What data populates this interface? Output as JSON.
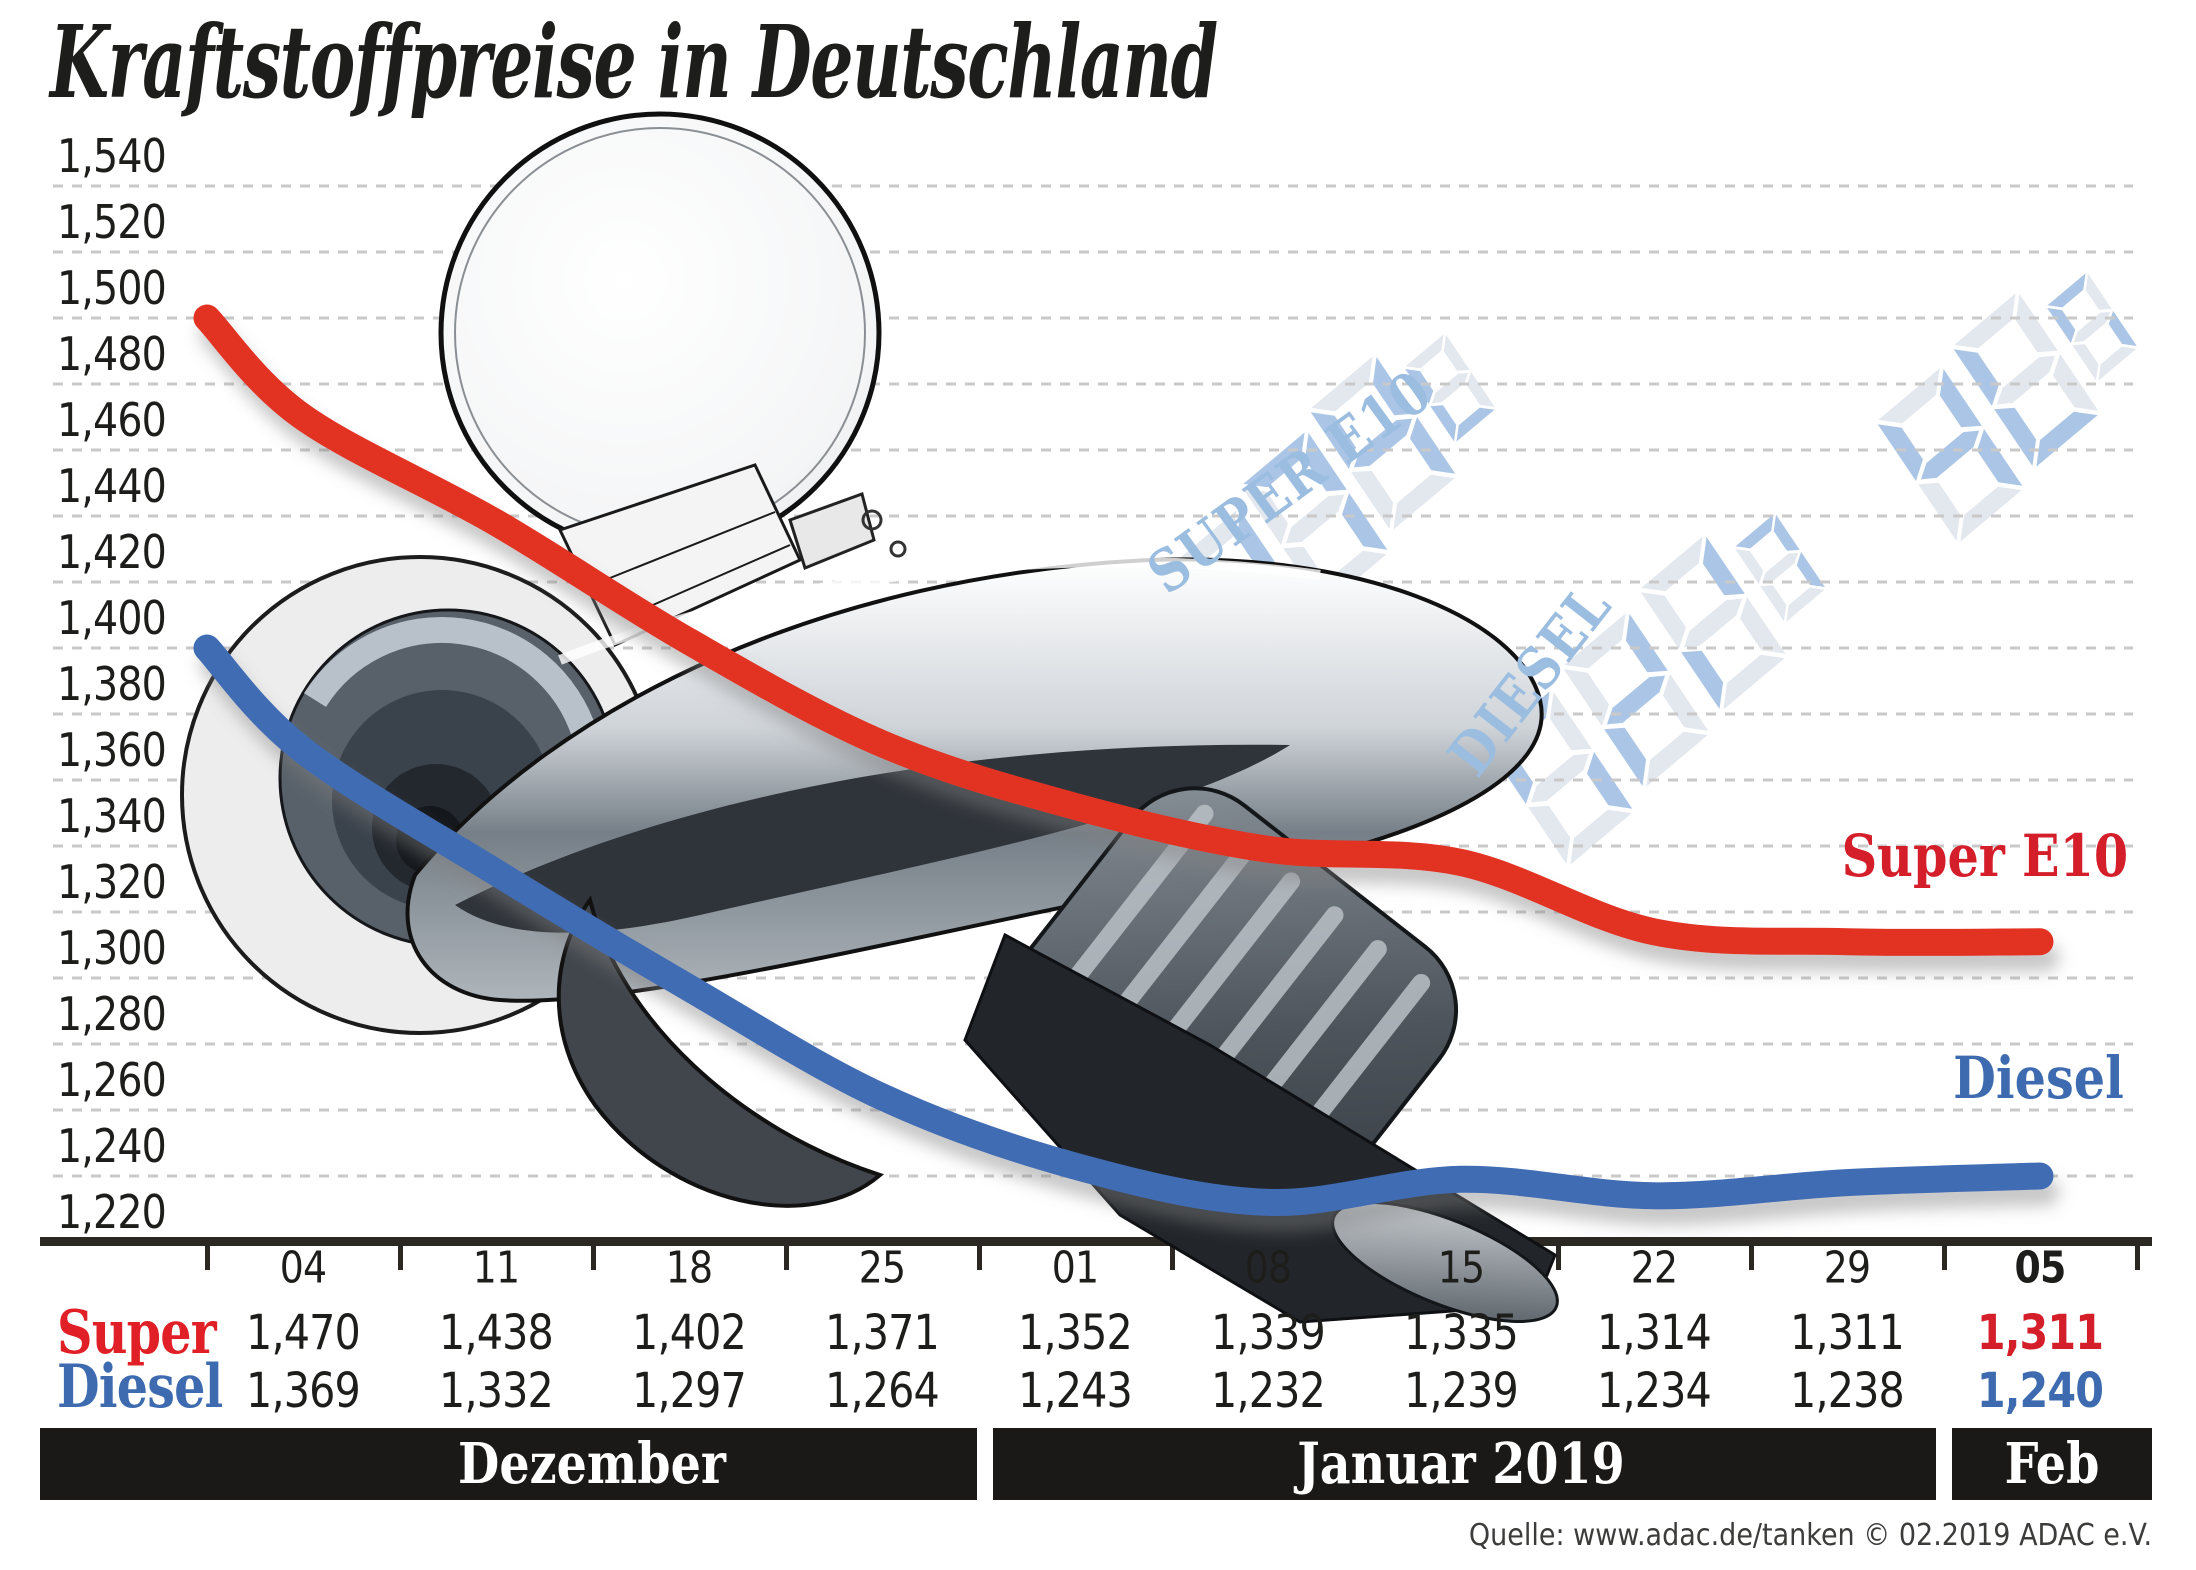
{
  "title": "Kraftstoffpreise in Deutschland",
  "source_note": "Quelle: www.adac.de/tanken   © 02.2019  ADAC e.V.",
  "curve_labels": {
    "super": "Super E10",
    "diesel": "Diesel"
  },
  "table": {
    "row_labels": [
      "Super",
      "Diesel"
    ]
  },
  "months": [
    {
      "label": "Dezember"
    },
    {
      "label": "Januar 2019"
    },
    {
      "label": "Feb"
    }
  ],
  "ghost_displays": [
    {
      "label": "SUPER E10",
      "digits": [
        "8",
        "8",
        "8",
        "8"
      ]
    },
    {
      "label": "DIESEL",
      "digits": [
        "8",
        "8",
        "8",
        "8"
      ]
    },
    {
      "label": "",
      "digits": [
        "8",
        "8",
        "8"
      ]
    }
  ],
  "chart_data": {
    "type": "line",
    "title": "Kraftstoffpreise in Deutschland",
    "x_labels": [
      "04",
      "11",
      "18",
      "25",
      "01",
      "08",
      "15",
      "22",
      "29",
      "05"
    ],
    "x_label_bold_last": true,
    "y_ticks": [
      "1,540",
      "1,520",
      "1,500",
      "1,480",
      "1,460",
      "1,440",
      "1,420",
      "1,400",
      "1,380",
      "1,360",
      "1,340",
      "1,320",
      "1,300",
      "1,280",
      "1,260",
      "1,240",
      "1,220"
    ],
    "ylim": [
      1.22,
      1.54
    ],
    "y_tick_step": 0.02,
    "grid": "dashed-horizontal",
    "legend_position": "inline-right",
    "series": [
      {
        "name": "Super",
        "legend": "Super E10",
        "color": "#e23222",
        "lead_in": 1.5,
        "values": [
          1.47,
          1.438,
          1.402,
          1.371,
          1.352,
          1.339,
          1.335,
          1.314,
          1.311,
          1.311
        ]
      },
      {
        "name": "Diesel",
        "legend": "Diesel",
        "color": "#3f6cb4",
        "lead_in": 1.4,
        "values": [
          1.369,
          1.332,
          1.297,
          1.264,
          1.243,
          1.232,
          1.239,
          1.234,
          1.238,
          1.24
        ]
      }
    ]
  }
}
